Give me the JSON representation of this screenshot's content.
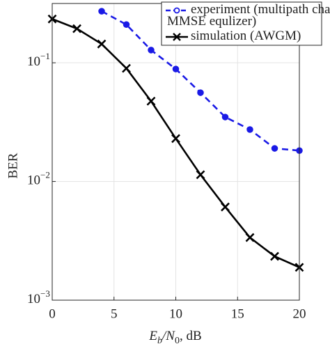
{
  "chart_data": {
    "type": "line",
    "x_label": "Eb/N0, dB",
    "y_label": "BER",
    "x": [
      0,
      2,
      4,
      6,
      8,
      10,
      12,
      14,
      16,
      18,
      20
    ],
    "series": [
      {
        "name": "experiment (multipath channel,\nMMSE equlizer)",
        "color": "#1a1ae6",
        "dash": true,
        "marker": "circle",
        "values": [
          null,
          null,
          0.272,
          0.21,
          0.128,
          0.0886,
          0.056,
          0.0349,
          0.0274,
          0.019,
          0.0182
        ]
      },
      {
        "name": "simulation (AWGM)",
        "color": "#000000",
        "dash": false,
        "marker": "x",
        "values": [
          0.234,
          0.194,
          0.144,
          0.0898,
          0.0475,
          0.023,
          0.0114,
          0.0061,
          0.00337,
          0.00234,
          0.00189
        ]
      }
    ],
    "xlim": [
      0,
      20
    ],
    "xticks": [
      0,
      5,
      10,
      15,
      20
    ],
    "ylim": [
      0.001,
      0.316
    ],
    "yticks": [
      {
        "value": 0.001,
        "label": "10−3"
      },
      {
        "value": 0.01,
        "label": "10−2"
      },
      {
        "value": 0.1,
        "label": "10−1"
      }
    ],
    "log_y": true,
    "grid": true,
    "legend": "northeast"
  }
}
